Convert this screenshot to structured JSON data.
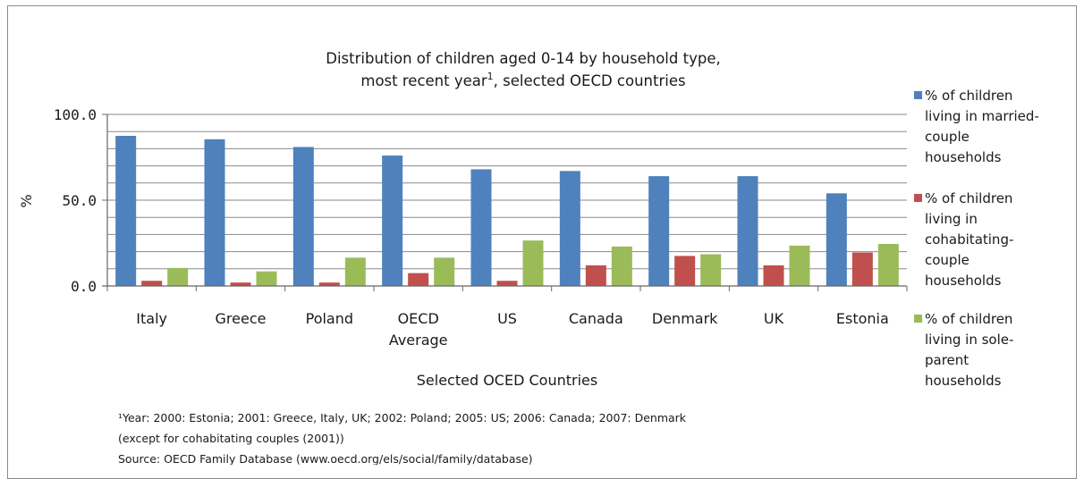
{
  "chart_data": {
    "type": "bar",
    "title": "Distribution of children aged 0-14 by household type,",
    "title_line2": "most recent year",
    "title_sup": "1",
    "title_line2_rest": ", selected OECD countries",
    "xlabel": "Selected OCED Countries",
    "ylabel": "%",
    "ylim": [
      0,
      100
    ],
    "yticks": [
      "0.0",
      "50.0",
      "100.0"
    ],
    "grid": true,
    "legend_position": "right",
    "categories": [
      [
        "Italy"
      ],
      [
        "Greece"
      ],
      [
        "Poland"
      ],
      [
        "OECD",
        "Average"
      ],
      [
        "US"
      ],
      [
        "Canada"
      ],
      [
        "Denmark"
      ],
      [
        "UK"
      ],
      [
        "Estonia"
      ]
    ],
    "series": [
      {
        "legend_lines": [
          "% of children",
          "living in married-",
          "couple",
          "households"
        ],
        "color": "#4f81bd",
        "values": [
          87.5,
          85.5,
          81,
          76,
          68,
          67,
          64,
          64,
          54
        ]
      },
      {
        "legend_lines": [
          "% of children",
          "living in",
          "cohabitating-",
          "couple",
          "households"
        ],
        "color": "#c0504d",
        "values": [
          3,
          2,
          2,
          7.5,
          3,
          12,
          17.5,
          12,
          19.5
        ]
      },
      {
        "legend_lines": [
          "% of children",
          "living in sole-",
          "parent",
          "households"
        ],
        "color": "#9bbb59",
        "values": [
          10.5,
          8.5,
          16.5,
          16.5,
          26.5,
          23,
          18.5,
          23.5,
          24.5
        ]
      }
    ],
    "footnotes": [
      "¹Year: 2000: Estonia; 2001: Greece, Italy, UK; 2002: Poland; 2005: US; 2006: Canada; 2007: Denmark",
      "(except for cohabitating couples (2001))",
      "Source: OECD Family Database (www.oecd.org/els/social/family/database)"
    ]
  }
}
